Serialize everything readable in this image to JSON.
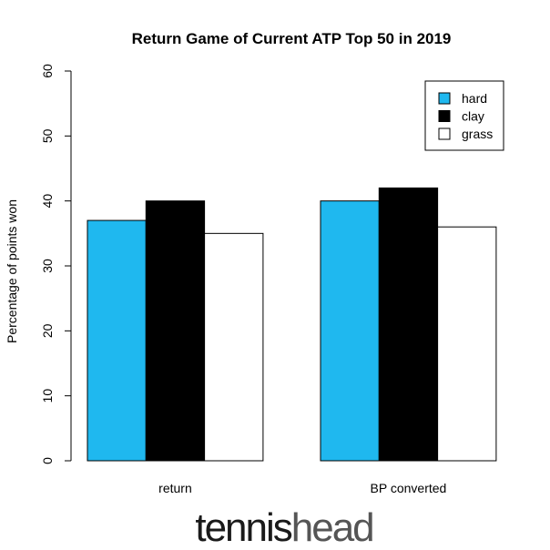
{
  "chart_data": {
    "type": "bar",
    "title": "Return Game of Current ATP Top 50 in 2019",
    "xlabel": "",
    "ylabel": "Percentage of points won",
    "ylim": [
      0,
      60
    ],
    "yticks": [
      0,
      10,
      20,
      30,
      40,
      50,
      60
    ],
    "categories": [
      "return",
      "BP converted"
    ],
    "series": [
      {
        "name": "hard",
        "color": "#1fb8ef",
        "values": [
          37,
          40
        ]
      },
      {
        "name": "clay",
        "color": "#000000",
        "values": [
          40,
          42
        ]
      },
      {
        "name": "grass",
        "color": "#ffffff",
        "values": [
          35,
          36
        ]
      }
    ],
    "legend_position": "top-right",
    "grid": false
  },
  "logo": {
    "part1": "tennis",
    "part2": "head",
    "part1_color": "#1a1a1a",
    "part2_color": "#555555"
  }
}
